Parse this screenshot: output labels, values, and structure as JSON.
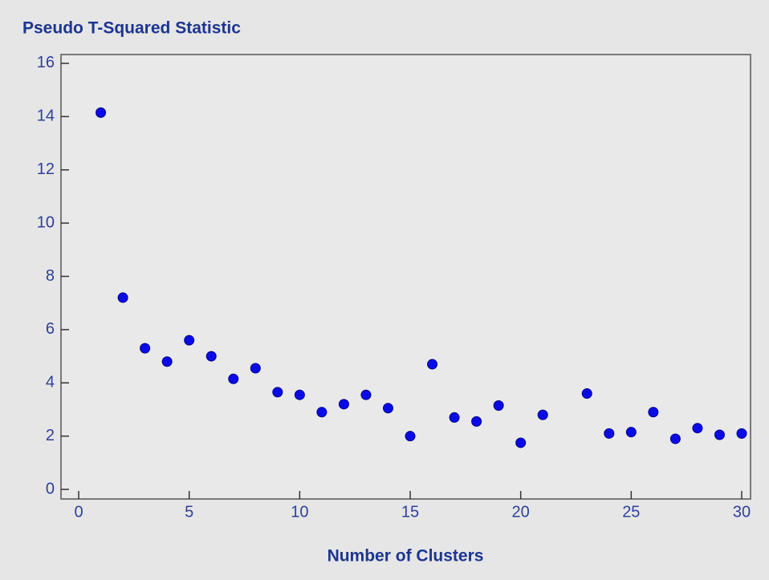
{
  "chart_data": {
    "type": "scatter",
    "title": "Pseudo T-Squared Statistic",
    "x_label": "Number of Clusters",
    "x": [
      1,
      2,
      3,
      4,
      5,
      6,
      7,
      8,
      9,
      10,
      11,
      12,
      13,
      14,
      15,
      16,
      17,
      18,
      19,
      20,
      21,
      23,
      24,
      25,
      26,
      27,
      28,
      29,
      30
    ],
    "series": [
      {
        "color": "#0a0ae8",
        "values": [
          14.15,
          7.2,
          5.3,
          4.8,
          5.6,
          5.0,
          4.15,
          4.55,
          3.65,
          3.55,
          2.9,
          3.2,
          3.55,
          3.05,
          2.0,
          4.7,
          2.7,
          2.55,
          3.15,
          1.75,
          2.8,
          3.6,
          2.1,
          2.15,
          2.9,
          1.9,
          2.3,
          2.05,
          2.1
        ]
      }
    ],
    "xlim": [
      -0.8,
      30.4
    ],
    "xticks": [
      0,
      5,
      10,
      15,
      20,
      25,
      30
    ],
    "ylim": [
      -0.36,
      16.33
    ],
    "yticks": [
      0,
      2,
      4,
      6,
      8,
      10,
      12,
      14,
      16
    ]
  }
}
